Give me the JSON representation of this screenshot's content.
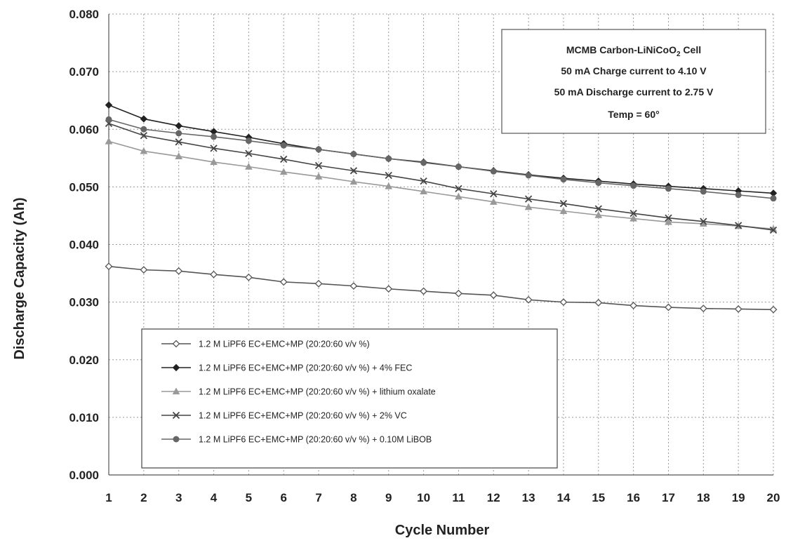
{
  "chart_data": {
    "type": "line",
    "xlabel": "Cycle Number",
    "ylabel": "Discharge Capacity (Ah)",
    "x": [
      1,
      2,
      3,
      4,
      5,
      6,
      7,
      8,
      9,
      10,
      11,
      12,
      13,
      14,
      15,
      16,
      17,
      18,
      19,
      20
    ],
    "xlim": [
      1,
      20
    ],
    "ylim": [
      0.0,
      0.08
    ],
    "yticks": [
      "0.000",
      "0.010",
      "0.020",
      "0.030",
      "0.040",
      "0.050",
      "0.060",
      "0.070",
      "0.080"
    ],
    "grid": true,
    "info_box": {
      "line1": "MCMB Carbon-LiNiCoO",
      "line1_sub": "2",
      "line1_end": " Cell",
      "line2": "50 mA Charge current to 4.10 V",
      "line3": "50 mA Discharge current to 2.75 V",
      "line4": "Temp  =  60°"
    },
    "legend_position": "bottom-left",
    "series": [
      {
        "name": "1.2 M LiPF6  EC+EMC+MP  (20:20:60  v/v %)",
        "marker": "diamond-open",
        "color": "#555555",
        "values": [
          0.0362,
          0.0356,
          0.0354,
          0.0348,
          0.0343,
          0.0335,
          0.0332,
          0.0328,
          0.0323,
          0.0319,
          0.0315,
          0.0312,
          0.0304,
          0.03,
          0.0299,
          0.0294,
          0.0291,
          0.0289,
          0.0288,
          0.0287
        ]
      },
      {
        "name": "1.2 M LiPF6  EC+EMC+MP  (20:20:60  v/v %) + 4% FEC",
        "marker": "diamond",
        "color": "#222222",
        "values": [
          0.0642,
          0.0618,
          0.0606,
          0.0596,
          0.0586,
          0.0575,
          0.0565,
          0.0557,
          0.0549,
          0.0543,
          0.0535,
          0.0528,
          0.0521,
          0.0515,
          0.051,
          0.0505,
          0.0501,
          0.0497,
          0.0493,
          0.0489
        ]
      },
      {
        "name": "1.2 M LiPF6  EC+EMC+MP  (20:20:60  v/v %) + lithium oxalate",
        "marker": "triangle",
        "color": "#999999",
        "values": [
          0.0579,
          0.0562,
          0.0553,
          0.0543,
          0.0535,
          0.0526,
          0.0518,
          0.0509,
          0.0501,
          0.0492,
          0.0483,
          0.0474,
          0.0465,
          0.0458,
          0.0451,
          0.0445,
          0.0439,
          0.0436,
          0.0432,
          0.0427
        ]
      },
      {
        "name": "1.2 M LiPF6  EC+EMC+MP  (20:20:60  v/v %) + 2% VC",
        "marker": "x",
        "color": "#444444",
        "values": [
          0.061,
          0.0589,
          0.0578,
          0.0567,
          0.0558,
          0.0548,
          0.0537,
          0.0528,
          0.052,
          0.051,
          0.0497,
          0.0488,
          0.0479,
          0.0471,
          0.0462,
          0.0454,
          0.0446,
          0.044,
          0.0433,
          0.0425
        ]
      },
      {
        "name": "1.2 M LiPF6  EC+EMC+MP  (20:20:60  v/v %) + 0.10M LiBOB",
        "marker": "circle",
        "color": "#666666",
        "values": [
          0.0617,
          0.06,
          0.0593,
          0.0587,
          0.058,
          0.0572,
          0.0565,
          0.0557,
          0.0549,
          0.0542,
          0.0535,
          0.0527,
          0.052,
          0.0513,
          0.0507,
          0.0502,
          0.0497,
          0.0492,
          0.0486,
          0.048
        ]
      }
    ]
  }
}
